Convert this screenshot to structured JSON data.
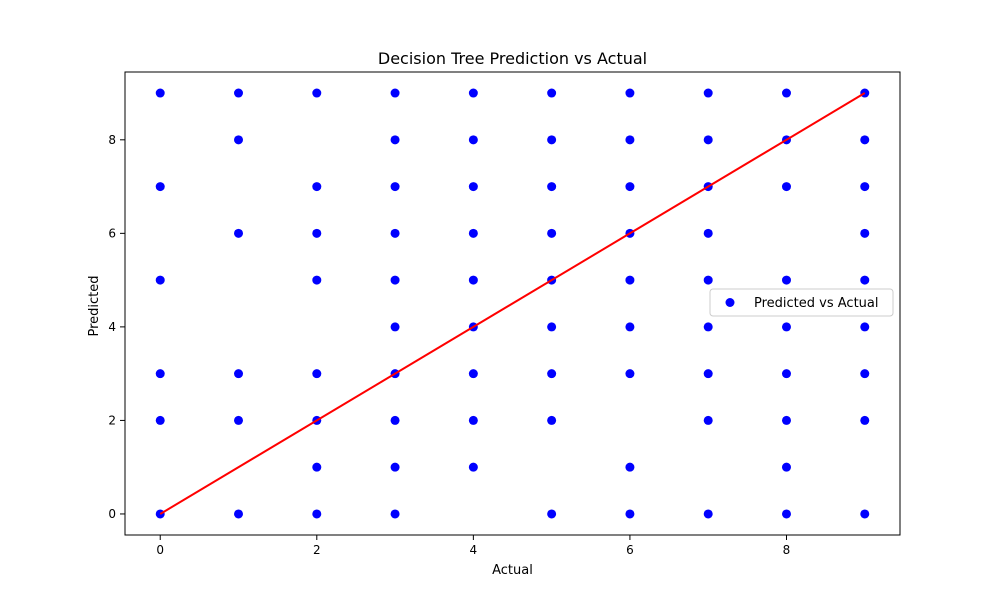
{
  "chart_data": {
    "type": "scatter",
    "title": "Decision Tree Prediction vs Actual",
    "xlabel": "Actual",
    "ylabel": "Predicted",
    "xlim": [
      -0.45,
      9.45
    ],
    "ylim": [
      -0.45,
      9.45
    ],
    "xticks": [
      0,
      2,
      4,
      6,
      8
    ],
    "yticks": [
      0,
      2,
      4,
      6,
      8
    ],
    "grid": false,
    "legend_position": "center-right",
    "series": [
      {
        "name": "Predicted vs Actual",
        "kind": "scatter",
        "color": "#0000ff",
        "points": [
          [
            0,
            0
          ],
          [
            0,
            2
          ],
          [
            0,
            3
          ],
          [
            0,
            5
          ],
          [
            0,
            7
          ],
          [
            0,
            9
          ],
          [
            1,
            0
          ],
          [
            1,
            2
          ],
          [
            1,
            3
          ],
          [
            1,
            6
          ],
          [
            1,
            8
          ],
          [
            1,
            9
          ],
          [
            2,
            0
          ],
          [
            2,
            1
          ],
          [
            2,
            2
          ],
          [
            2,
            3
          ],
          [
            2,
            5
          ],
          [
            2,
            6
          ],
          [
            2,
            7
          ],
          [
            2,
            9
          ],
          [
            3,
            0
          ],
          [
            3,
            1
          ],
          [
            3,
            2
          ],
          [
            3,
            3
          ],
          [
            3,
            4
          ],
          [
            3,
            5
          ],
          [
            3,
            6
          ],
          [
            3,
            7
          ],
          [
            3,
            8
          ],
          [
            3,
            9
          ],
          [
            4,
            1
          ],
          [
            4,
            2
          ],
          [
            4,
            3
          ],
          [
            4,
            4
          ],
          [
            4,
            5
          ],
          [
            4,
            6
          ],
          [
            4,
            7
          ],
          [
            4,
            8
          ],
          [
            4,
            9
          ],
          [
            5,
            0
          ],
          [
            5,
            2
          ],
          [
            5,
            3
          ],
          [
            5,
            4
          ],
          [
            5,
            5
          ],
          [
            5,
            6
          ],
          [
            5,
            7
          ],
          [
            5,
            8
          ],
          [
            5,
            9
          ],
          [
            6,
            0
          ],
          [
            6,
            1
          ],
          [
            6,
            3
          ],
          [
            6,
            4
          ],
          [
            6,
            5
          ],
          [
            6,
            6
          ],
          [
            6,
            7
          ],
          [
            6,
            8
          ],
          [
            6,
            9
          ],
          [
            7,
            0
          ],
          [
            7,
            2
          ],
          [
            7,
            3
          ],
          [
            7,
            4
          ],
          [
            7,
            5
          ],
          [
            7,
            6
          ],
          [
            7,
            7
          ],
          [
            7,
            8
          ],
          [
            7,
            9
          ],
          [
            8,
            0
          ],
          [
            8,
            1
          ],
          [
            8,
            2
          ],
          [
            8,
            3
          ],
          [
            8,
            4
          ],
          [
            8,
            5
          ],
          [
            8,
            7
          ],
          [
            8,
            8
          ],
          [
            8,
            9
          ],
          [
            9,
            0
          ],
          [
            9,
            2
          ],
          [
            9,
            3
          ],
          [
            9,
            4
          ],
          [
            9,
            5
          ],
          [
            9,
            6
          ],
          [
            9,
            7
          ],
          [
            9,
            8
          ],
          [
            9,
            9
          ]
        ]
      },
      {
        "name": "",
        "kind": "line",
        "color": "#ff0000",
        "points": [
          [
            0,
            0
          ],
          [
            9,
            9
          ]
        ]
      }
    ]
  }
}
